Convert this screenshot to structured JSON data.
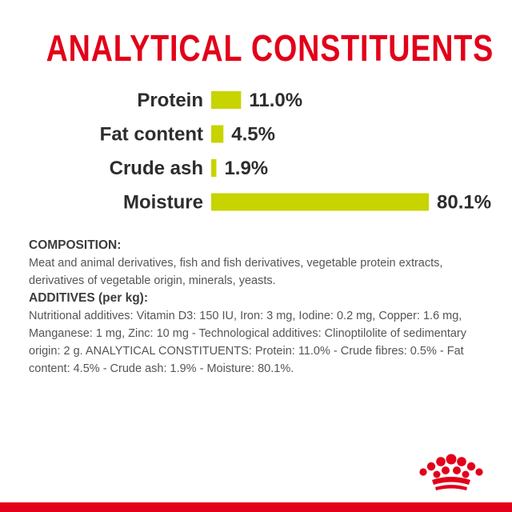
{
  "title": "ANALYTICAL CONSTITUENTS",
  "colors": {
    "title": "#e2001a",
    "bar": "#c8d400",
    "bottom_bar": "#e2001a",
    "logo": "#e2001a"
  },
  "chart_data": {
    "type": "bar",
    "orientation": "horizontal",
    "categories": [
      "Protein",
      "Fat content",
      "Crude ash",
      "Moisture"
    ],
    "values": [
      11.0,
      4.5,
      1.9,
      80.1
    ],
    "value_labels": [
      "11.0%",
      "4.5%",
      "1.9%",
      "80.1%"
    ],
    "xlim": [
      0,
      100
    ],
    "grid": false
  },
  "composition": {
    "heading": "COMPOSITION:",
    "text": "Meat and animal derivatives, fish and fish derivatives, vegetable protein extracts, derivatives of vegetable origin, minerals, yeasts."
  },
  "additives": {
    "heading": "ADDITIVES (per kg):",
    "text": "Nutritional additives: Vitamin D3: 150 IU, Iron: 3 mg, Iodine: 0.2 mg, Copper: 1.6 mg, Manganese: 1 mg, Zinc: 10 mg - Technological additives: Clinoptilolite of sedimentary origin: 2 g. ANALYTICAL CONSTITUENTS: Protein: 11.0% - Crude fibres: 0.5% - Fat content: 4.5% - Crude ash: 1.9% - Moisture: 80.1%."
  },
  "logo_icon": "crown-icon"
}
